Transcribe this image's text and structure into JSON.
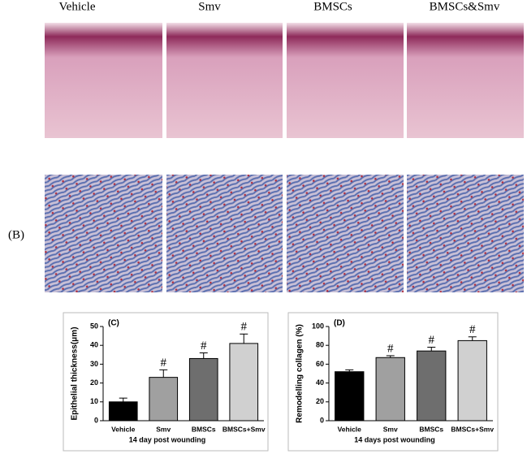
{
  "columns": [
    "Vehicle",
    "Smv",
    "BMSCs",
    "BMSCs&Smv"
  ],
  "row_label": "(B)",
  "chart_data": [
    {
      "type": "bar",
      "panel": "(C)",
      "ylabel": "Epithelial thickness(μm)",
      "xlabel": "14 day post wounding",
      "categories": [
        "Vehicle",
        "Smv",
        "BMSCs",
        "BMSCs+Smv"
      ],
      "values": [
        10,
        23,
        33,
        41
      ],
      "errors": [
        2,
        4,
        3,
        5
      ],
      "colors": [
        "#000000",
        "#a0a0a0",
        "#6e6e6e",
        "#d0d0d0"
      ],
      "annotations": [
        {
          "category": "Smv",
          "text": "#"
        },
        {
          "category": "BMSCs",
          "text": "#"
        },
        {
          "category": "BMSCs+Smv",
          "text": "#"
        }
      ],
      "ylim": [
        0,
        50
      ],
      "yticks": [
        0,
        10,
        20,
        30,
        40,
        50
      ]
    },
    {
      "type": "bar",
      "panel": "(D)",
      "ylabel": "Remodelling collagen (%)",
      "xlabel": "14 days post wounding",
      "categories": [
        "Vehicle",
        "Smv",
        "BMSCs",
        "BMSCs+Smv"
      ],
      "values": [
        52,
        67,
        74,
        85
      ],
      "errors": [
        2,
        2,
        4,
        4
      ],
      "colors": [
        "#000000",
        "#a0a0a0",
        "#6e6e6e",
        "#d0d0d0"
      ],
      "annotations": [
        {
          "category": "Smv",
          "text": "#"
        },
        {
          "category": "BMSCs",
          "text": "#"
        },
        {
          "category": "BMSCs+Smv",
          "text": "#"
        }
      ],
      "ylim": [
        0,
        100
      ],
      "yticks": [
        0,
        20,
        40,
        60,
        80,
        100
      ]
    }
  ]
}
